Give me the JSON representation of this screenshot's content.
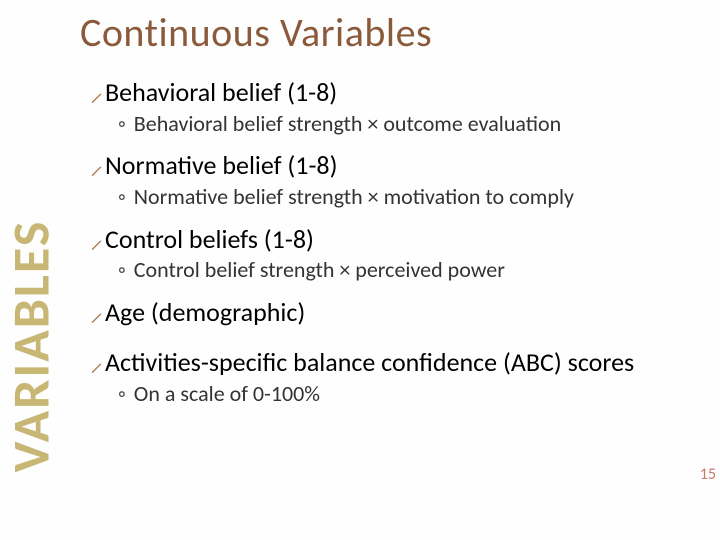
{
  "colors": {
    "title": "#8a5a3b",
    "bullet": "#a97c50",
    "vertical_label": "#c8b674",
    "pagenum": "#c97b68",
    "body_text": "#000000",
    "sub_text": "#333333"
  },
  "title": "Continuous Variables",
  "vertical_label": "VARIABLES",
  "page_number": "15",
  "items": [
    {
      "label": "Behavioral belief (1-8)",
      "sub": "Behavioral belief strength × outcome evaluation"
    },
    {
      "label": "Normative belief (1-8)",
      "sub": "Normative belief  strength × motivation to comply"
    },
    {
      "label": "Control beliefs (1-8)",
      "sub": "Control belief strength × perceived power"
    },
    {
      "label": "Age (demographic)",
      "sub": null
    },
    {
      "label": "Activities-specific balance confidence (ABC) scores",
      "sub": "On a scale of 0-100%"
    }
  ],
  "bullet_glyph": "⸝",
  "sub_bullet_glyph": "◦",
  "typography": {
    "title_fontsize": 40,
    "item_fontsize": 26,
    "sub_fontsize": 22,
    "vertical_fontsize": 52,
    "pagenum_fontsize": 16
  }
}
